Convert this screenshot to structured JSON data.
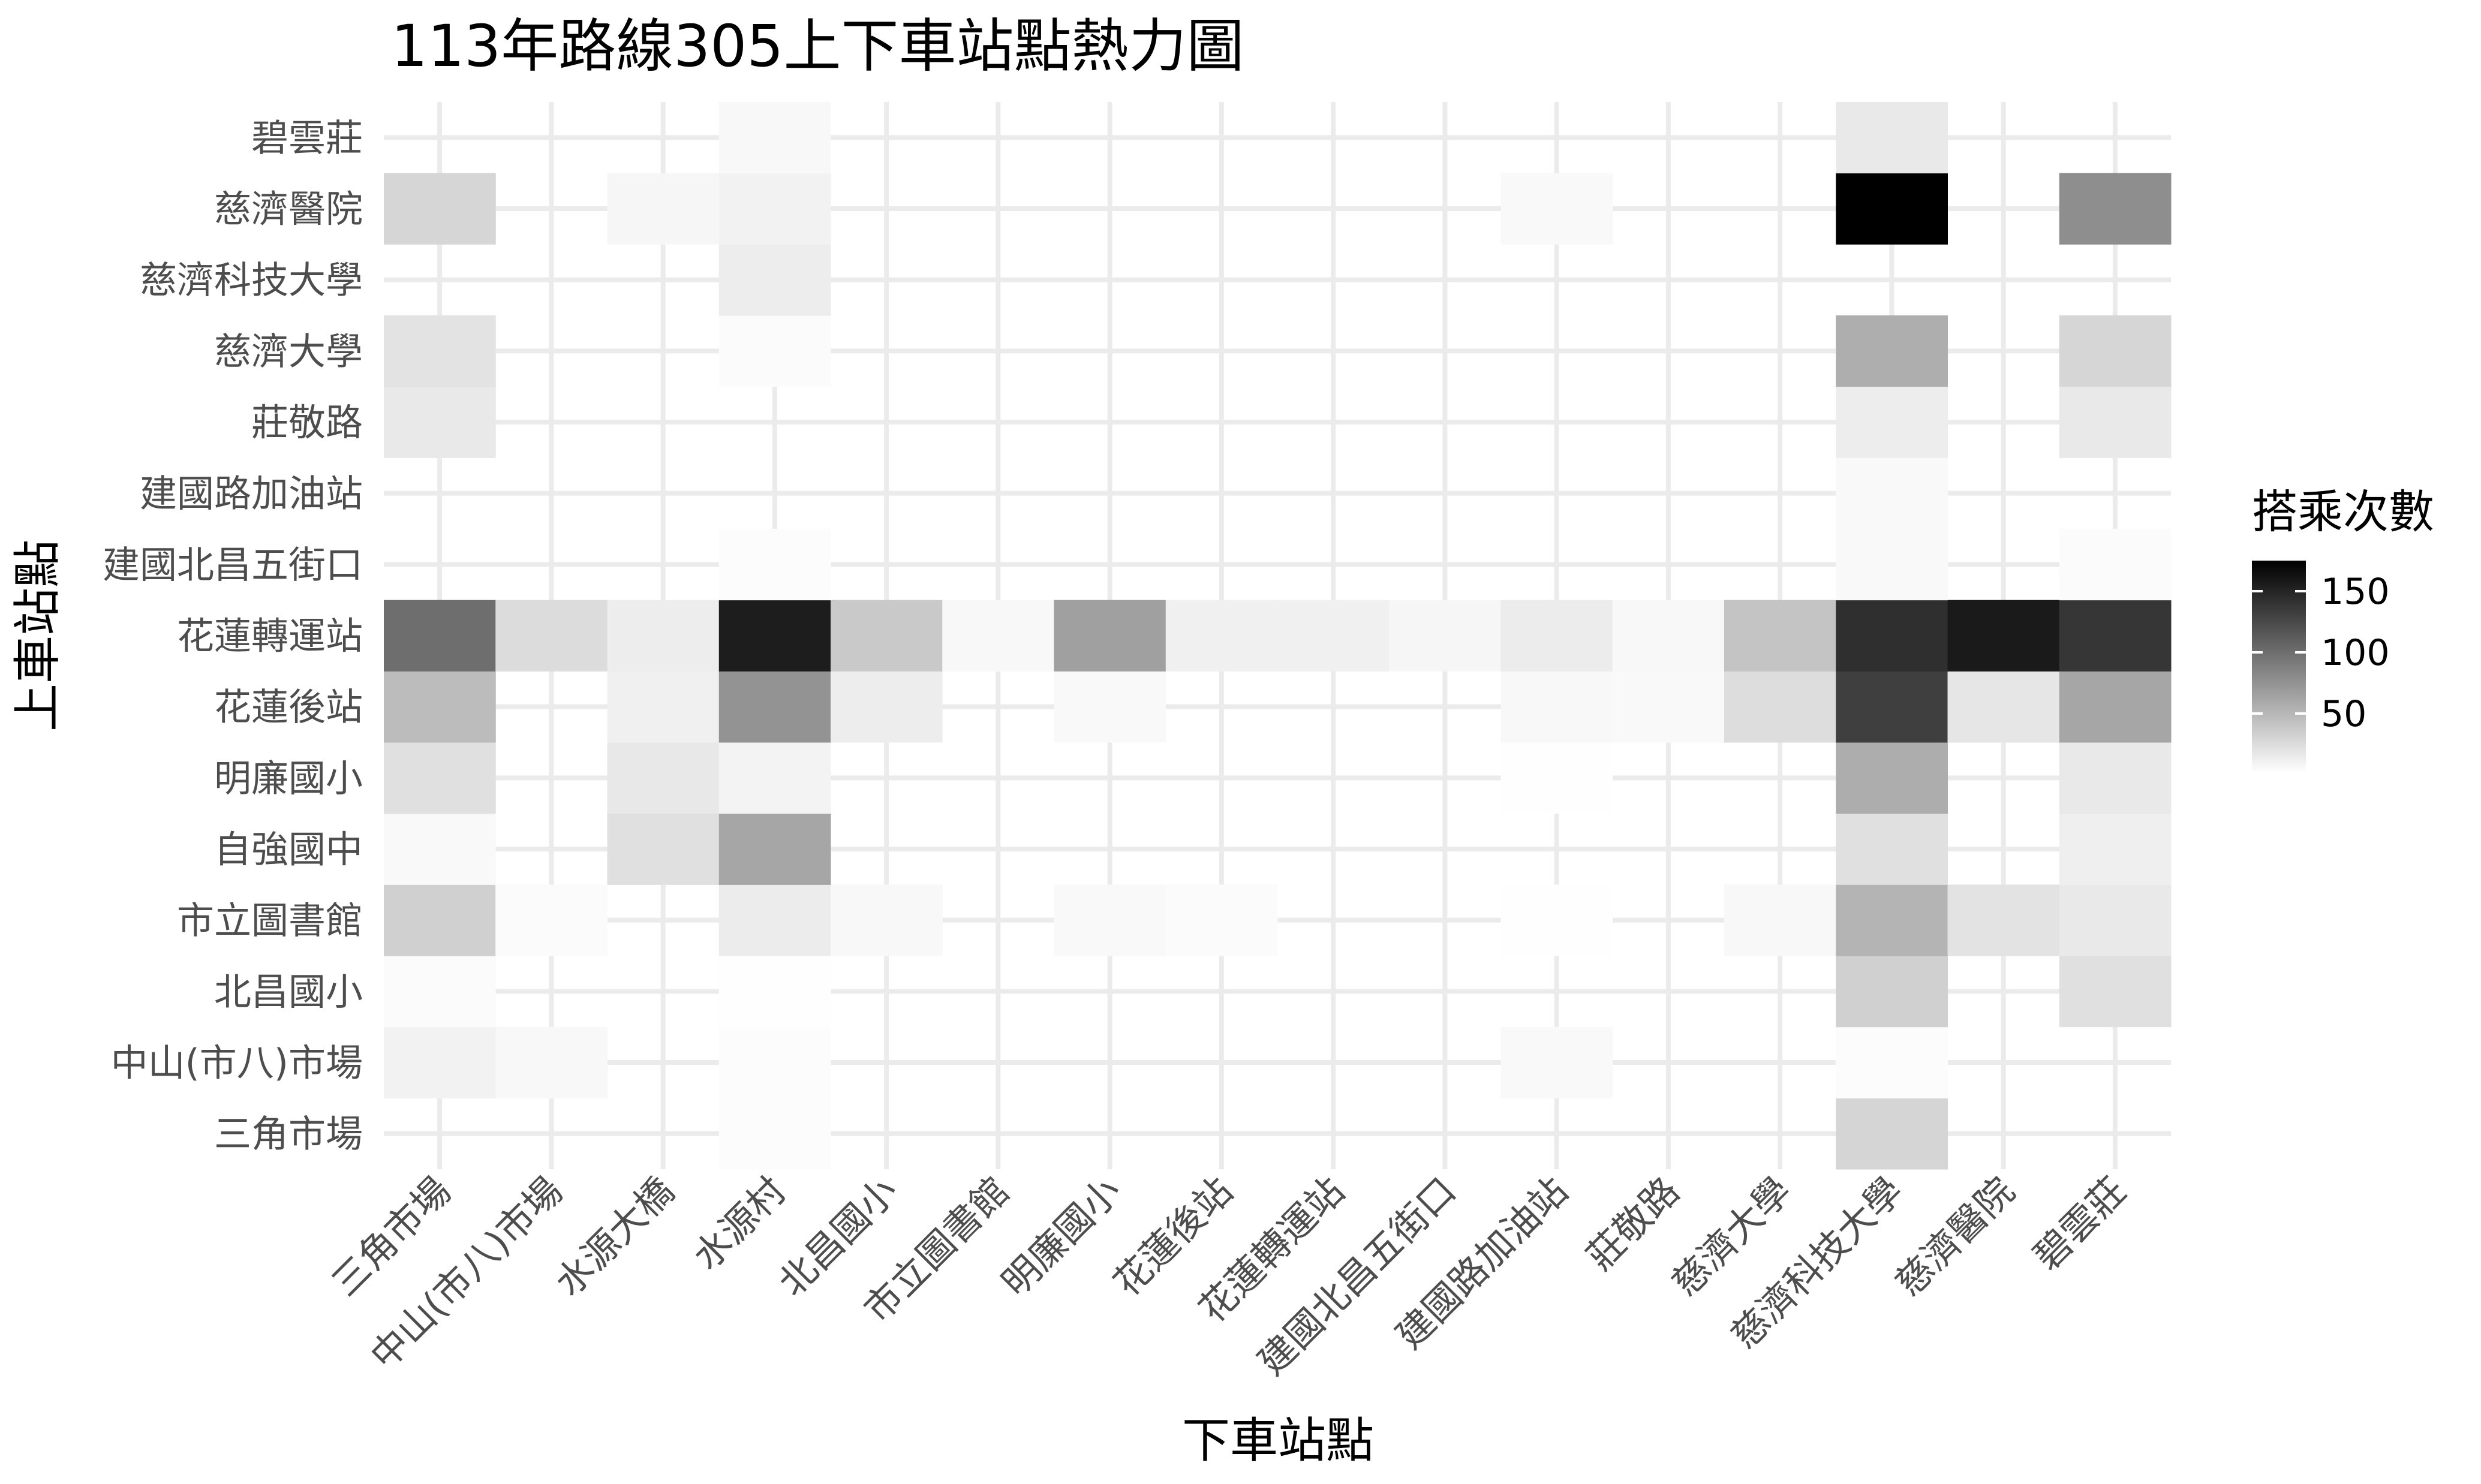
{
  "chart_data": {
    "type": "heatmap",
    "title": "113年路線305上下車站點熱力圖",
    "xlabel": "下車站點",
    "ylabel": "上車站點",
    "x_categories": [
      "三角市場",
      "中山(市八)市場",
      "水源大橋",
      "水源村",
      "北昌國小",
      "市立圖書館",
      "明廉國小",
      "花蓮後站",
      "花蓮轉運站",
      "建國北昌五街口",
      "建國路加油站",
      "莊敬路",
      "慈濟大學",
      "慈濟科技大學",
      "慈濟醫院",
      "碧雲莊"
    ],
    "y_categories": [
      "三角市場",
      "中山(市八)市場",
      "北昌國小",
      "市立圖書館",
      "自強國中",
      "明廉國小",
      "花蓮後站",
      "花蓮轉運站",
      "建國北昌五街口",
      "建國路加油站",
      "莊敬路",
      "慈濟大學",
      "慈濟科技大學",
      "慈濟醫院",
      "碧雲莊"
    ],
    "legend": {
      "title": "搭乘次數",
      "ticks": [
        50,
        100,
        150
      ],
      "range": [
        1,
        175
      ],
      "low_color": "#ffffff",
      "high_color": "#000000",
      "placement": "right"
    },
    "cells": [
      {
        "x": "水源村",
        "y": "三角市場",
        "value": 3
      },
      {
        "x": "慈濟科技大學",
        "y": "三角市場",
        "value": 30
      },
      {
        "x": "三角市場",
        "y": "中山(市八)市場",
        "value": 10
      },
      {
        "x": "中山(市八)市場",
        "y": "中山(市八)市場",
        "value": 6
      },
      {
        "x": "水源村",
        "y": "中山(市八)市場",
        "value": 3
      },
      {
        "x": "建國路加油站",
        "y": "中山(市八)市場",
        "value": 5
      },
      {
        "x": "慈濟科技大學",
        "y": "中山(市八)市場",
        "value": 3
      },
      {
        "x": "三角市場",
        "y": "北昌國小",
        "value": 4
      },
      {
        "x": "水源村",
        "y": "北昌國小",
        "value": 2
      },
      {
        "x": "慈濟科技大學",
        "y": "北昌國小",
        "value": 33
      },
      {
        "x": "碧雲莊",
        "y": "北昌國小",
        "value": 22
      },
      {
        "x": "三角市場",
        "y": "市立圖書館",
        "value": 33
      },
      {
        "x": "中山(市八)市場",
        "y": "市立圖書館",
        "value": 4
      },
      {
        "x": "水源村",
        "y": "市立圖書館",
        "value": 14
      },
      {
        "x": "北昌國小",
        "y": "市立圖書館",
        "value": 6
      },
      {
        "x": "明廉國小",
        "y": "市立圖書館",
        "value": 5
      },
      {
        "x": "花蓮後站",
        "y": "市立圖書館",
        "value": 4
      },
      {
        "x": "建國路加油站",
        "y": "市立圖書館",
        "value": 2
      },
      {
        "x": "慈濟大學",
        "y": "市立圖書館",
        "value": 6
      },
      {
        "x": "慈濟科技大學",
        "y": "市立圖書館",
        "value": 52
      },
      {
        "x": "慈濟醫院",
        "y": "市立圖書館",
        "value": 20
      },
      {
        "x": "碧雲莊",
        "y": "市立圖書館",
        "value": 16
      },
      {
        "x": "三角市場",
        "y": "自強國中",
        "value": 5
      },
      {
        "x": "水源大橋",
        "y": "自強國中",
        "value": 22
      },
      {
        "x": "水源村",
        "y": "自強國中",
        "value": 62
      },
      {
        "x": "慈濟科技大學",
        "y": "自強國中",
        "value": 22
      },
      {
        "x": "碧雲莊",
        "y": "自強國中",
        "value": 12
      },
      {
        "x": "三角市場",
        "y": "明廉國小",
        "value": 22
      },
      {
        "x": "水源大橋",
        "y": "明廉國小",
        "value": 17
      },
      {
        "x": "水源村",
        "y": "明廉國小",
        "value": 9
      },
      {
        "x": "建國路加油站",
        "y": "明廉國小",
        "value": 2
      },
      {
        "x": "慈濟科技大學",
        "y": "明廉國小",
        "value": 57
      },
      {
        "x": "碧雲莊",
        "y": "明廉國小",
        "value": 16
      },
      {
        "x": "三角市場",
        "y": "花蓮後站",
        "value": 47
      },
      {
        "x": "水源大橋",
        "y": "花蓮後站",
        "value": 11
      },
      {
        "x": "水源村",
        "y": "花蓮後站",
        "value": 75
      },
      {
        "x": "北昌國小",
        "y": "花蓮後站",
        "value": 13
      },
      {
        "x": "明廉國小",
        "y": "花蓮後站",
        "value": 5
      },
      {
        "x": "建國路加油站",
        "y": "花蓮後站",
        "value": 6
      },
      {
        "x": "莊敬路",
        "y": "花蓮後站",
        "value": 5
      },
      {
        "x": "慈濟大學",
        "y": "花蓮後站",
        "value": 24
      },
      {
        "x": "慈濟科技大學",
        "y": "花蓮後站",
        "value": 132
      },
      {
        "x": "慈濟醫院",
        "y": "花蓮後站",
        "value": 18
      },
      {
        "x": "碧雲莊",
        "y": "花蓮後站",
        "value": 62
      },
      {
        "x": "三角市場",
        "y": "花蓮轉運站",
        "value": 100
      },
      {
        "x": "中山(市八)市場",
        "y": "花蓮轉運站",
        "value": 25
      },
      {
        "x": "水源大橋",
        "y": "花蓮轉運站",
        "value": 13
      },
      {
        "x": "水源村",
        "y": "花蓮轉運站",
        "value": 155
      },
      {
        "x": "北昌國小",
        "y": "花蓮轉運站",
        "value": 38
      },
      {
        "x": "市立圖書館",
        "y": "花蓮轉運站",
        "value": 6
      },
      {
        "x": "明廉國小",
        "y": "花蓮轉運站",
        "value": 66
      },
      {
        "x": "花蓮後站",
        "y": "花蓮轉運站",
        "value": 11
      },
      {
        "x": "花蓮轉運站",
        "y": "花蓮轉運站",
        "value": 11
      },
      {
        "x": "建國北昌五街口",
        "y": "花蓮轉運站",
        "value": 7
      },
      {
        "x": "建國路加油站",
        "y": "花蓮轉運站",
        "value": 14
      },
      {
        "x": "莊敬路",
        "y": "花蓮轉運站",
        "value": 6
      },
      {
        "x": "慈濟大學",
        "y": "花蓮轉運站",
        "value": 41
      },
      {
        "x": "慈濟科技大學",
        "y": "花蓮轉運站",
        "value": 143
      },
      {
        "x": "慈濟醫院",
        "y": "花蓮轉運站",
        "value": 157
      },
      {
        "x": "碧雲莊",
        "y": "花蓮轉運站",
        "value": 138
      },
      {
        "x": "水源村",
        "y": "建國北昌五街口",
        "value": 3
      },
      {
        "x": "慈濟科技大學",
        "y": "建國北昌五街口",
        "value": 5
      },
      {
        "x": "碧雲莊",
        "y": "建國北昌五街口",
        "value": 4
      },
      {
        "x": "慈濟科技大學",
        "y": "建國路加油站",
        "value": 5
      },
      {
        "x": "三角市場",
        "y": "莊敬路",
        "value": 16
      },
      {
        "x": "慈濟科技大學",
        "y": "莊敬路",
        "value": 13
      },
      {
        "x": "碧雲莊",
        "y": "莊敬路",
        "value": 16
      },
      {
        "x": "三角市場",
        "y": "慈濟大學",
        "value": 20
      },
      {
        "x": "水源村",
        "y": "慈濟大學",
        "value": 4
      },
      {
        "x": "慈濟科技大學",
        "y": "慈濟大學",
        "value": 56
      },
      {
        "x": "碧雲莊",
        "y": "慈濟大學",
        "value": 29
      },
      {
        "x": "水源村",
        "y": "慈濟科技大學",
        "value": 13
      },
      {
        "x": "三角市場",
        "y": "慈濟醫院",
        "value": 29
      },
      {
        "x": "水源大橋",
        "y": "慈濟醫院",
        "value": 7
      },
      {
        "x": "水源村",
        "y": "慈濟醫院",
        "value": 10
      },
      {
        "x": "建國路加油站",
        "y": "慈濟醫院",
        "value": 5
      },
      {
        "x": "慈濟科技大學",
        "y": "慈濟醫院",
        "value": 175
      },
      {
        "x": "碧雲莊",
        "y": "慈濟醫院",
        "value": 78
      },
      {
        "x": "水源村",
        "y": "碧雲莊",
        "value": 6
      },
      {
        "x": "慈濟科技大學",
        "y": "碧雲莊",
        "value": 16
      }
    ]
  }
}
